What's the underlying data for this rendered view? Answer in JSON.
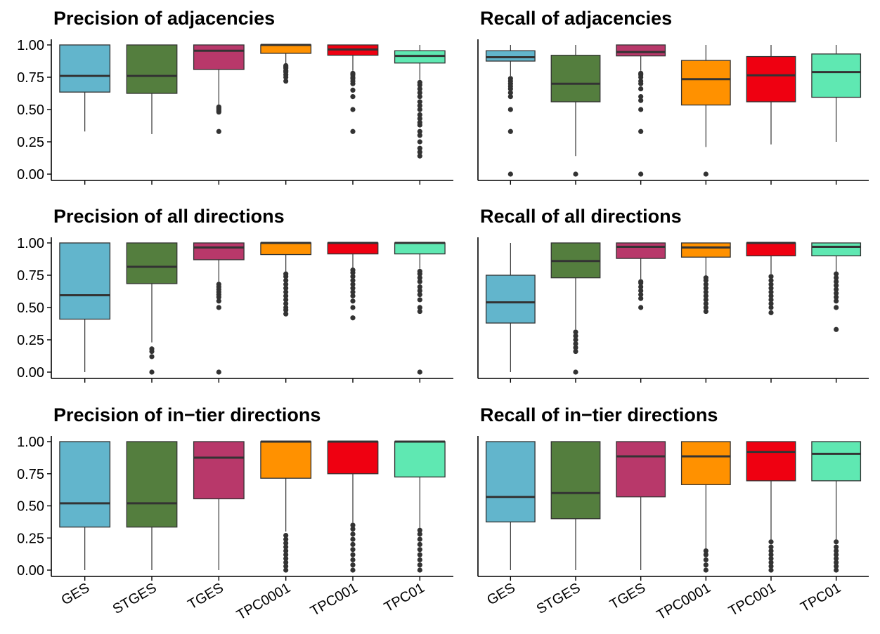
{
  "categories": [
    "GES",
    "STGES",
    "TGES",
    "TPC0001",
    "TPC001",
    "TPC01"
  ],
  "colors": [
    "#62b5cc",
    "#547e3e",
    "#b8386a",
    "#ff9100",
    "#ef0011",
    "#5fe8b2"
  ],
  "chart_data": [
    {
      "type": "box",
      "title": "Precision of adjacencies",
      "ylim": [
        0,
        1
      ],
      "yticks": [
        "0.00",
        "0.25",
        "0.50",
        "0.75",
        "1.00"
      ],
      "boxes": [
        {
          "q1": 0.635,
          "median": 0.76,
          "q3": 1.0,
          "lo": 0.33,
          "hi": 1.0,
          "outliers": []
        },
        {
          "q1": 0.625,
          "median": 0.76,
          "q3": 1.0,
          "lo": 0.31,
          "hi": 1.0,
          "outliers": []
        },
        {
          "q1": 0.81,
          "median": 0.955,
          "q3": 1.0,
          "lo": 0.52,
          "hi": 1.0,
          "outliers": [
            0.33,
            0.48,
            0.49,
            0.5,
            0.51,
            0.52
          ]
        },
        {
          "q1": 0.935,
          "median": 1.0,
          "q3": 1.0,
          "lo": 0.85,
          "hi": 1.0,
          "outliers": [
            0.72,
            0.75,
            0.77,
            0.79,
            0.8,
            0.82,
            0.83,
            0.84
          ]
        },
        {
          "q1": 0.92,
          "median": 0.965,
          "q3": 1.0,
          "lo": 0.8,
          "hi": 1.0,
          "outliers": [
            0.33,
            0.5,
            0.6,
            0.65,
            0.7,
            0.72,
            0.74,
            0.75,
            0.77,
            0.78
          ]
        },
        {
          "q1": 0.86,
          "median": 0.915,
          "q3": 0.955,
          "lo": 0.73,
          "hi": 1.0,
          "outliers": [
            0.14,
            0.17,
            0.2,
            0.25,
            0.3,
            0.33,
            0.38,
            0.4,
            0.43,
            0.46,
            0.5,
            0.53,
            0.56,
            0.6,
            0.63,
            0.66,
            0.69,
            0.71
          ]
        }
      ]
    },
    {
      "type": "box",
      "title": "Recall of adjacencies",
      "ylim": [
        0,
        1
      ],
      "yticks": [],
      "boxes": [
        {
          "q1": 0.875,
          "median": 0.905,
          "q3": 0.955,
          "lo": 0.76,
          "hi": 1.0,
          "outliers": [
            0.0,
            0.33,
            0.5,
            0.6,
            0.63,
            0.66,
            0.68,
            0.7,
            0.72,
            0.74
          ]
        },
        {
          "q1": 0.56,
          "median": 0.7,
          "q3": 0.92,
          "lo": 0.14,
          "hi": 1.0,
          "outliers": [
            0.0
          ]
        },
        {
          "q1": 0.915,
          "median": 0.945,
          "q3": 1.0,
          "lo": 0.8,
          "hi": 1.0,
          "outliers": [
            0.0,
            0.33,
            0.5,
            0.57,
            0.6,
            0.66,
            0.7,
            0.72,
            0.75,
            0.77,
            0.78
          ]
        },
        {
          "q1": 0.535,
          "median": 0.735,
          "q3": 0.88,
          "lo": 0.21,
          "hi": 1.0,
          "outliers": [
            0.0
          ]
        },
        {
          "q1": 0.56,
          "median": 0.765,
          "q3": 0.91,
          "lo": 0.23,
          "hi": 1.0,
          "outliers": []
        },
        {
          "q1": 0.595,
          "median": 0.79,
          "q3": 0.93,
          "lo": 0.25,
          "hi": 1.0,
          "outliers": []
        }
      ]
    },
    {
      "type": "box",
      "title": "Precision of all directions",
      "ylim": [
        0,
        1
      ],
      "yticks": [
        "0.00",
        "0.25",
        "0.50",
        "0.75",
        "1.00"
      ],
      "boxes": [
        {
          "q1": 0.41,
          "median": 0.595,
          "q3": 1.0,
          "lo": 0.0,
          "hi": 1.0,
          "outliers": []
        },
        {
          "q1": 0.685,
          "median": 0.815,
          "q3": 1.0,
          "lo": 0.23,
          "hi": 1.0,
          "outliers": [
            0.0,
            0.12,
            0.16,
            0.18
          ]
        },
        {
          "q1": 0.87,
          "median": 0.965,
          "q3": 1.0,
          "lo": 0.7,
          "hi": 1.0,
          "outliers": [
            0.0,
            0.5,
            0.55,
            0.58,
            0.6,
            0.62,
            0.64,
            0.66,
            0.68
          ]
        },
        {
          "q1": 0.91,
          "median": 1.0,
          "q3": 1.0,
          "lo": 0.78,
          "hi": 1.0,
          "outliers": [
            0.45,
            0.48,
            0.5,
            0.53,
            0.56,
            0.59,
            0.62,
            0.65,
            0.68,
            0.71,
            0.74,
            0.76
          ]
        },
        {
          "q1": 0.915,
          "median": 1.0,
          "q3": 1.0,
          "lo": 0.8,
          "hi": 1.0,
          "outliers": [
            0.42,
            0.5,
            0.55,
            0.59,
            0.62,
            0.65,
            0.68,
            0.71,
            0.74,
            0.77,
            0.79
          ]
        },
        {
          "q1": 0.915,
          "median": 1.0,
          "q3": 1.0,
          "lo": 0.8,
          "hi": 1.0,
          "outliers": [
            0.0,
            0.47,
            0.5,
            0.56,
            0.6,
            0.63,
            0.66,
            0.7,
            0.73,
            0.76,
            0.78
          ]
        }
      ]
    },
    {
      "type": "box",
      "title": "Recall of all directions",
      "ylim": [
        0,
        1
      ],
      "yticks": [],
      "boxes": [
        {
          "q1": 0.38,
          "median": 0.54,
          "q3": 0.75,
          "lo": 0.0,
          "hi": 1.0,
          "outliers": []
        },
        {
          "q1": 0.73,
          "median": 0.86,
          "q3": 1.0,
          "lo": 0.33,
          "hi": 1.0,
          "outliers": [
            0.0,
            0.16,
            0.19,
            0.22,
            0.25,
            0.28,
            0.31
          ]
        },
        {
          "q1": 0.88,
          "median": 0.97,
          "q3": 1.0,
          "lo": 0.72,
          "hi": 1.0,
          "outliers": [
            0.5,
            0.57,
            0.6,
            0.63,
            0.66,
            0.69,
            0.7
          ]
        },
        {
          "q1": 0.89,
          "median": 0.965,
          "q3": 1.0,
          "lo": 0.74,
          "hi": 1.0,
          "outliers": [
            0.47,
            0.5,
            0.53,
            0.56,
            0.59,
            0.62,
            0.65,
            0.68,
            0.71,
            0.73
          ]
        },
        {
          "q1": 0.9,
          "median": 1.0,
          "q3": 1.0,
          "lo": 0.76,
          "hi": 1.0,
          "outliers": [
            0.46,
            0.5,
            0.53,
            0.56,
            0.59,
            0.62,
            0.65,
            0.68,
            0.71,
            0.74
          ]
        },
        {
          "q1": 0.9,
          "median": 0.97,
          "q3": 1.0,
          "lo": 0.77,
          "hi": 1.0,
          "outliers": [
            0.33,
            0.5,
            0.55,
            0.58,
            0.61,
            0.64,
            0.67,
            0.7,
            0.73,
            0.76
          ]
        }
      ]
    },
    {
      "type": "box",
      "title": "Precision of in−tier directions",
      "ylim": [
        0,
        1
      ],
      "yticks": [
        "0.00",
        "0.25",
        "0.50",
        "0.75",
        "1.00"
      ],
      "boxes": [
        {
          "q1": 0.335,
          "median": 0.52,
          "q3": 1.0,
          "lo": 0.0,
          "hi": 1.0,
          "outliers": []
        },
        {
          "q1": 0.335,
          "median": 0.52,
          "q3": 1.0,
          "lo": 0.0,
          "hi": 1.0,
          "outliers": []
        },
        {
          "q1": 0.555,
          "median": 0.875,
          "q3": 1.0,
          "lo": 0.0,
          "hi": 1.0,
          "outliers": []
        },
        {
          "q1": 0.715,
          "median": 1.0,
          "q3": 1.0,
          "lo": 0.3,
          "hi": 1.0,
          "outliers": [
            0.0,
            0.03,
            0.06,
            0.09,
            0.12,
            0.15,
            0.18,
            0.21,
            0.24,
            0.27
          ]
        },
        {
          "q1": 0.75,
          "median": 1.0,
          "q3": 1.0,
          "lo": 0.37,
          "hi": 1.0,
          "outliers": [
            0.0,
            0.04,
            0.08,
            0.12,
            0.16,
            0.2,
            0.24,
            0.28,
            0.32,
            0.35
          ]
        },
        {
          "q1": 0.725,
          "median": 1.0,
          "q3": 1.0,
          "lo": 0.33,
          "hi": 1.0,
          "outliers": [
            0.0,
            0.04,
            0.08,
            0.12,
            0.16,
            0.2,
            0.24,
            0.28,
            0.31
          ]
        }
      ]
    },
    {
      "type": "box",
      "title": "Recall of in−tier directions",
      "ylim": [
        0,
        1
      ],
      "yticks": [],
      "boxes": [
        {
          "q1": 0.375,
          "median": 0.57,
          "q3": 1.0,
          "lo": 0.0,
          "hi": 1.0,
          "outliers": []
        },
        {
          "q1": 0.4,
          "median": 0.6,
          "q3": 1.0,
          "lo": 0.0,
          "hi": 1.0,
          "outliers": []
        },
        {
          "q1": 0.57,
          "median": 0.885,
          "q3": 1.0,
          "lo": 0.0,
          "hi": 1.0,
          "outliers": []
        },
        {
          "q1": 0.665,
          "median": 0.885,
          "q3": 1.0,
          "lo": 0.16,
          "hi": 1.0,
          "outliers": [
            0.0,
            0.04,
            0.08,
            0.12,
            0.15
          ]
        },
        {
          "q1": 0.695,
          "median": 0.92,
          "q3": 1.0,
          "lo": 0.24,
          "hi": 1.0,
          "outliers": [
            0.0,
            0.03,
            0.06,
            0.09,
            0.12,
            0.15,
            0.18,
            0.22
          ]
        },
        {
          "q1": 0.695,
          "median": 0.905,
          "q3": 1.0,
          "lo": 0.24,
          "hi": 1.0,
          "outliers": [
            0.0,
            0.03,
            0.06,
            0.09,
            0.12,
            0.15,
            0.18,
            0.22
          ]
        }
      ]
    }
  ]
}
